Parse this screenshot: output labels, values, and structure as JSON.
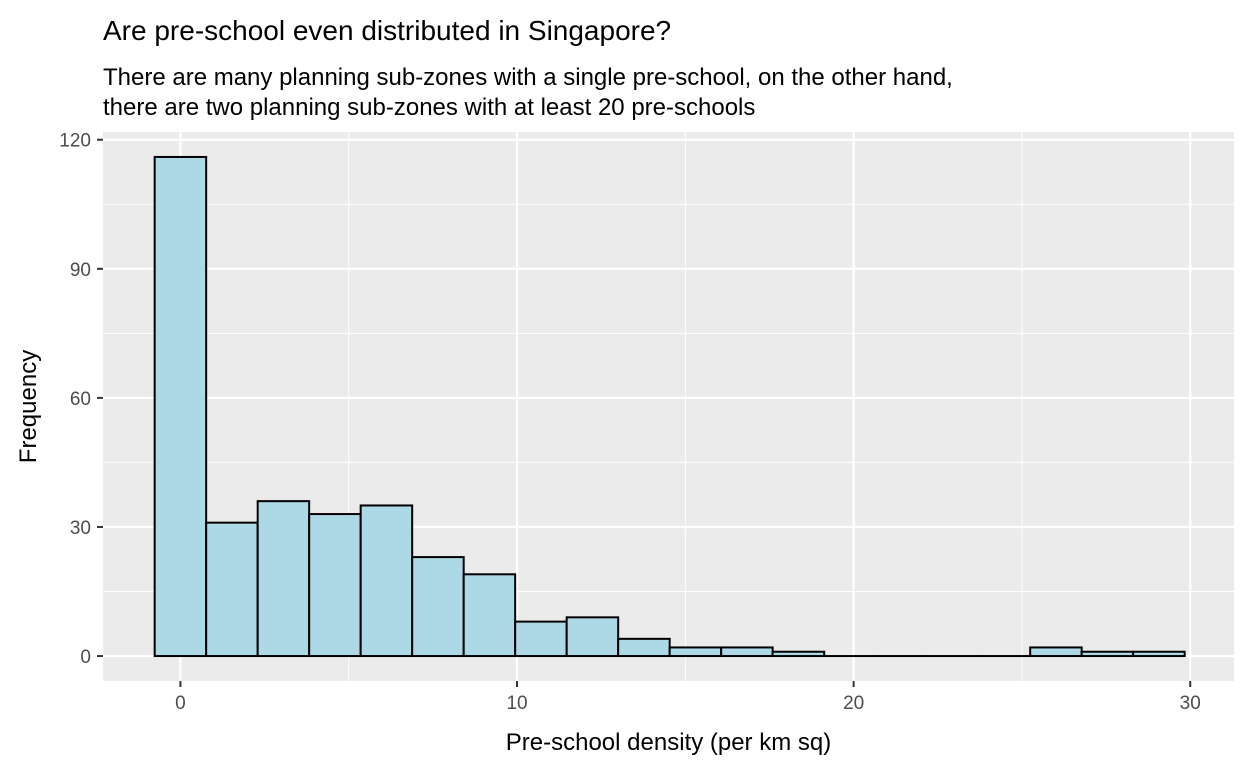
{
  "chart_data": {
    "type": "bar",
    "title": "Are pre-school even distributed in Singapore?",
    "subtitle_lines": [
      "There are many planning sub-zones with a single pre-school, on the other hand,",
      "there are two planning sub-zones with at least 20 pre-schools"
    ],
    "xlabel": "Pre-school density (per km sq)",
    "ylabel": "Frequency",
    "xlim": [
      -2.3,
      31.3
    ],
    "ylim": [
      -5.8,
      121.8
    ],
    "x_ticks": [
      0,
      10,
      20,
      30
    ],
    "y_ticks": [
      0,
      30,
      60,
      90,
      120
    ],
    "grid": true,
    "bin_width": 1.53,
    "bin_start": -0.765,
    "values": [
      116,
      31,
      36,
      33,
      35,
      23,
      19,
      8,
      9,
      4,
      2,
      2,
      1,
      0,
      0,
      0,
      0,
      2,
      1,
      1
    ],
    "colors": {
      "bar_fill": "#add8e6",
      "bar_stroke": "#000000",
      "panel_bg": "#ebebeb",
      "grid": "#ffffff"
    }
  }
}
